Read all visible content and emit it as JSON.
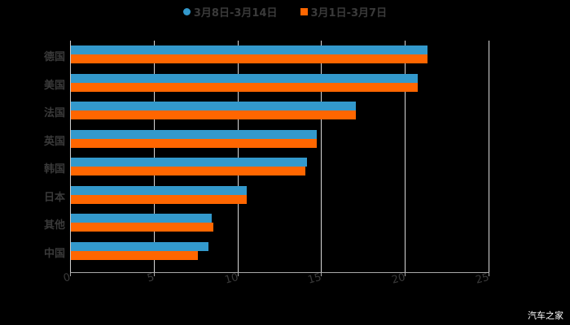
{
  "chart_data": {
    "type": "bar",
    "orientation": "horizontal",
    "title": "",
    "xlabel": "",
    "ylabel": "",
    "xlim": [
      0,
      25
    ],
    "x_ticks": [
      "0",
      "5",
      "10",
      "15",
      "20",
      "25"
    ],
    "grid": true,
    "legend_position": "top",
    "categories": [
      "德国",
      "美国",
      "法国",
      "英国",
      "韩国",
      "日本",
      "其他",
      "中国"
    ],
    "series": [
      {
        "name": "3月8日-3月14日",
        "color": "#3399cc",
        "marker": "circle",
        "values": [
          21.3,
          20.7,
          17.0,
          14.7,
          14.1,
          10.5,
          8.4,
          8.2
        ]
      },
      {
        "name": "3月1日-3月7日",
        "color": "#ff6600",
        "marker": "square",
        "values": [
          21.3,
          20.7,
          17.0,
          14.7,
          14.0,
          10.5,
          8.5,
          7.6
        ]
      }
    ]
  },
  "watermark": "汽车之家"
}
